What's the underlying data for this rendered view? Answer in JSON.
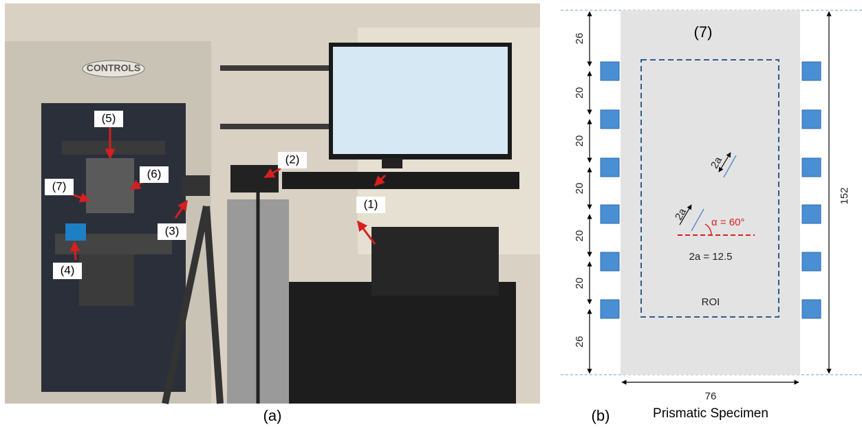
{
  "panel_a": {
    "caption": "(a)",
    "brand": "CONTROLS",
    "labels": [
      "(1)",
      "(2)",
      "(3)",
      "(4)",
      "(5)",
      "(6)",
      "(7)"
    ]
  },
  "panel_b": {
    "caption": "(b)",
    "title": "Prismatic Specimen",
    "specimen_label": "(7)",
    "left_dims": [
      "26",
      "20",
      "20",
      "20",
      "20",
      "20",
      "26"
    ],
    "height": "152",
    "width": "76",
    "crack_length_top": "2a",
    "crack_length_bottom": "2a",
    "angle": "α = 60°",
    "crack_size": "2a = 12.5",
    "roi": "ROI"
  }
}
